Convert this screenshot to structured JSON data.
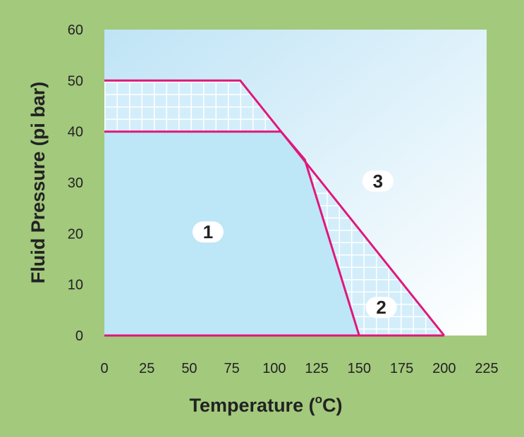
{
  "chart_data": {
    "type": "area",
    "title": "",
    "xlabel": "Temperature (",
    "xlabel_unit_sup": "o",
    "xlabel_unit_end": "C)",
    "ylabel": "Fluid Pressure (pi bar)",
    "xlim": [
      0,
      225
    ],
    "ylim": [
      0,
      60
    ],
    "x_ticks": [
      "0",
      "25",
      "50",
      "75",
      "100",
      "125",
      "150",
      "175",
      "200",
      "225"
    ],
    "y_ticks": [
      "0",
      "10",
      "20",
      "30",
      "40",
      "50",
      "60"
    ],
    "grid": false,
    "line_color": "#e0177a",
    "region_fill": "#bde6f7",
    "upper_boundary": [
      [
        0,
        50
      ],
      [
        80,
        50
      ],
      [
        200,
        0
      ]
    ],
    "middle_boundary": [
      [
        0,
        40
      ],
      [
        104,
        40
      ],
      [
        118,
        34.5
      ],
      [
        150,
        0
      ]
    ],
    "baseline": [
      [
        0,
        0
      ],
      [
        200,
        0
      ]
    ],
    "regions": [
      {
        "label": "1",
        "x": 61,
        "y": 20.3
      },
      {
        "label": "2",
        "x": 163,
        "y": 5.5
      },
      {
        "label": "3",
        "x": 161,
        "y": 30.3
      }
    ]
  }
}
